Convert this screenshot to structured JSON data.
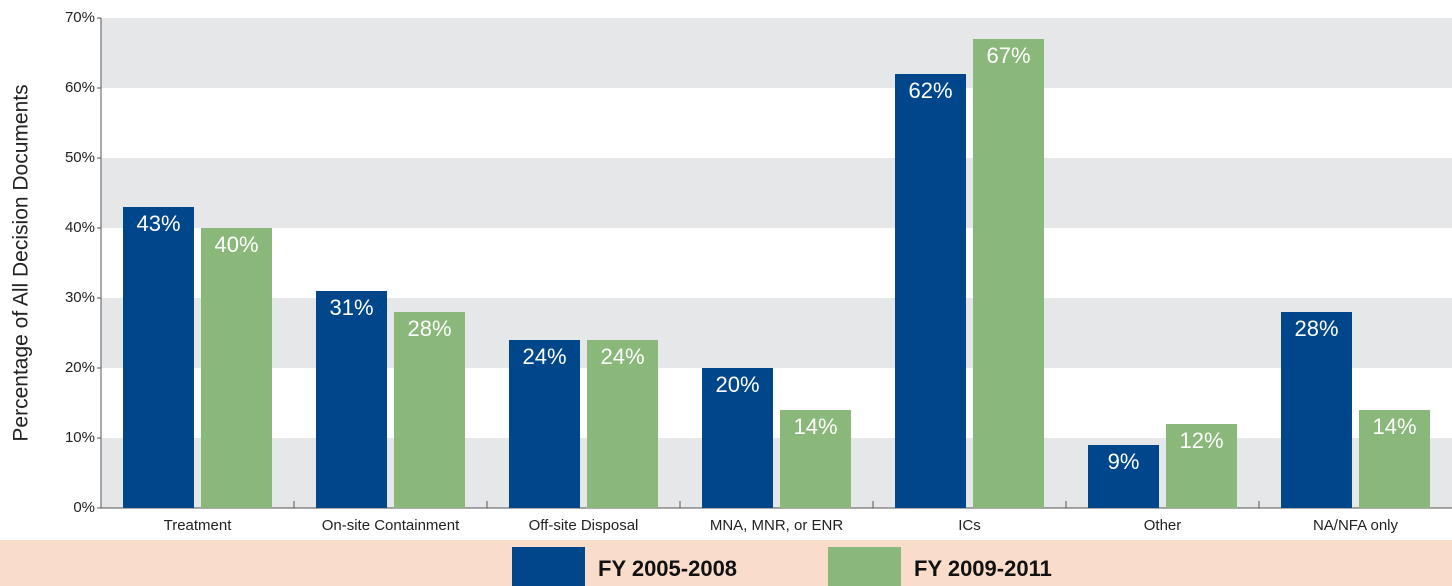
{
  "chart_data": {
    "type": "bar",
    "y_label": "Percentage of All  Decision Documents",
    "categories": [
      "Treatment",
      "On-site Containment",
      "Off-site Disposal",
      "MNA, MNR, or ENR",
      "ICs",
      "Other",
      "NA/NFA only"
    ],
    "series": [
      {
        "name": "FY 2005-2008",
        "color": "#00468b",
        "values": [
          43,
          31,
          24,
          20,
          62,
          9,
          28
        ],
        "value_labels": [
          "43%",
          "31%",
          "24%",
          "20%",
          "62%",
          "9%",
          "28%"
        ]
      },
      {
        "name": "FY 2009-2011",
        "color": "#8ab87a",
        "values": [
          40,
          28,
          24,
          14,
          67,
          12,
          14
        ],
        "value_labels": [
          "40%",
          "28%",
          "24%",
          "14%",
          "67%",
          "12%",
          "14%"
        ]
      }
    ],
    "ylim": [
      0,
      70
    ],
    "yticks": [
      {
        "value": 0,
        "label": "0%"
      },
      {
        "value": 10,
        "label": "10%"
      },
      {
        "value": 20,
        "label": "20%"
      },
      {
        "value": 30,
        "label": "30%"
      },
      {
        "value": 40,
        "label": "40%"
      },
      {
        "value": 50,
        "label": "50%"
      },
      {
        "value": 60,
        "label": "60%"
      },
      {
        "value": 70,
        "label": "70%"
      }
    ],
    "grid": true
  }
}
